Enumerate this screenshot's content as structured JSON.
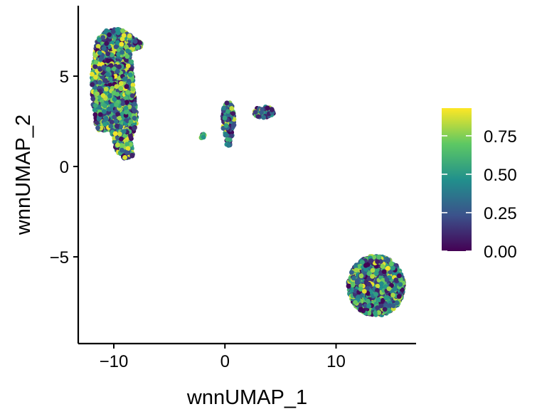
{
  "chart_data": {
    "type": "scatter",
    "title": "",
    "xlabel": "wnnUMAP_1",
    "ylabel": "wnnUMAP_2",
    "xlim": [
      -13.2,
      17.2
    ],
    "ylim": [
      -9.8,
      8.9
    ],
    "x_ticks": [
      {
        "value": -10,
        "label": "−10"
      },
      {
        "value": 0,
        "label": "0"
      },
      {
        "value": 10,
        "label": "10"
      }
    ],
    "y_ticks": [
      {
        "value": -5,
        "label": "−5"
      },
      {
        "value": 0,
        "label": "0"
      },
      {
        "value": 5,
        "label": "5"
      }
    ],
    "grid": false,
    "color_scale": {
      "name": "viridis",
      "range": [
        0,
        0.93
      ],
      "stops": [
        "#440154",
        "#3B528B",
        "#21908C",
        "#5DC863",
        "#FDE725"
      ],
      "ticks": [
        {
          "value": 0.0,
          "label": "0.00"
        },
        {
          "value": 0.25,
          "label": "0.25"
        },
        {
          "value": 0.5,
          "label": "0.50"
        },
        {
          "value": 0.75,
          "label": "0.75"
        }
      ]
    },
    "legend_position": "right",
    "clusters": [
      {
        "shape": "poly",
        "poly": [
          [
            -11.5,
            7.0
          ],
          [
            -10.6,
            7.6
          ],
          [
            -9.4,
            7.6
          ],
          [
            -8.3,
            7.2
          ],
          [
            -7.4,
            6.8
          ],
          [
            -7.6,
            6.6
          ],
          [
            -8.5,
            6.4
          ],
          [
            -8.2,
            4.5
          ],
          [
            -7.9,
            2.5
          ],
          [
            -8.5,
            1.4
          ],
          [
            -8.2,
            0.6
          ],
          [
            -9.0,
            0.4
          ],
          [
            -9.8,
            0.9
          ],
          [
            -10.2,
            2.0
          ],
          [
            -11.5,
            2.0
          ],
          [
            -11.9,
            3.5
          ],
          [
            -12.0,
            5.0
          ]
        ],
        "n": 2100
      },
      {
        "shape": "ellipse",
        "cx": 0.3,
        "cy": 2.5,
        "rx": 0.55,
        "ry": 1.1,
        "n": 110
      },
      {
        "shape": "ellipse",
        "cx": 0.3,
        "cy": 1.4,
        "rx": 0.3,
        "ry": 0.25,
        "n": 12
      },
      {
        "shape": "ellipse",
        "cx": -2.0,
        "cy": 1.7,
        "rx": 0.22,
        "ry": 0.15,
        "n": 8
      },
      {
        "shape": "ellipse",
        "cx": 3.5,
        "cy": 3.0,
        "rx": 0.9,
        "ry": 0.32,
        "n": 55
      },
      {
        "shape": "ellipse",
        "cx": 13.6,
        "cy": -6.6,
        "rx": 2.5,
        "ry": 1.65,
        "n": 1500
      }
    ]
  }
}
